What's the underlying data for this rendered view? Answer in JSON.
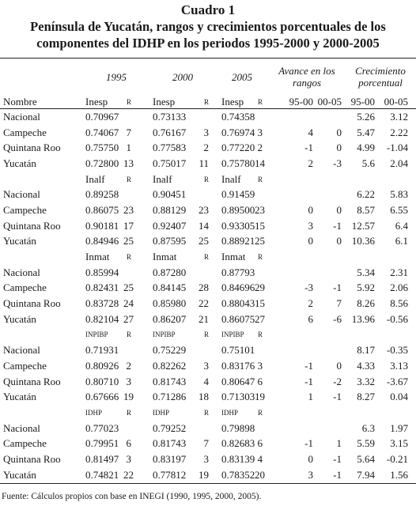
{
  "title": "Cuadro 1",
  "subtitle": [
    "Península de Yucatán, rangos y crecimientos porcentuales de los",
    "componentes del IDHP en los periodos 1995-2000 y 2000-2005"
  ],
  "table": {
    "group_headers": [
      "1995",
      "2000",
      "2005",
      "Avance en los rangos",
      "Crecimiento porcentual"
    ],
    "column_headers": [
      "Nombre",
      "Inesp",
      "R",
      "Inesp",
      "R",
      "Inesp",
      "R",
      "95-00",
      "00-05",
      "95-00",
      "00-05"
    ],
    "blocks": [
      {
        "rows": [
          [
            "Nacional",
            "0.70967",
            null,
            "0.73133",
            null,
            "0.74358",
            null,
            null,
            null,
            "5.26",
            "3.12"
          ],
          [
            "Campeche",
            "0.74067",
            "7",
            "0.76167",
            "3",
            "0.76974",
            "3",
            "4",
            "0",
            "5.47",
            "2.22"
          ],
          [
            "Quintana Roo",
            "0.75750",
            "1",
            "0.77583",
            "2",
            "0.77220",
            "2",
            "-1",
            "0",
            "4.99",
            "-1.04"
          ],
          [
            "Yucatán",
            "0.72800",
            "13",
            "0.75017",
            "11",
            "0.75780",
            "14",
            "2",
            "-3",
            "5.6",
            "2.04"
          ]
        ]
      },
      {
        "labels": [
          "Inalf",
          "R",
          "Inalf",
          "R",
          "Inalf",
          "R"
        ],
        "rows": [
          [
            "Nacional",
            "0.89258",
            null,
            "0.90451",
            null,
            "0.91459",
            null,
            null,
            null,
            "6.22",
            "5.83"
          ],
          [
            "Campeche",
            "0.86075",
            "23",
            "0.88129",
            "23",
            "0.89500",
            "23",
            "0",
            "0",
            "8.57",
            "6.55"
          ],
          [
            "Quintana Roo",
            "0.90181",
            "17",
            "0.92407",
            "14",
            "0.93305",
            "15",
            "3",
            "-1",
            "12.57",
            "6.4"
          ],
          [
            "Yucatán",
            "0.84946",
            "25",
            "0.87595",
            "25",
            "0.88921",
            "25",
            "0",
            "0",
            "10.36",
            "6.1"
          ]
        ]
      },
      {
        "labels": [
          "Inmat",
          "R",
          "Inmat",
          "R",
          "Inmat",
          "R"
        ],
        "rows": [
          [
            "Nacional",
            "0.85994",
            null,
            "0.87280",
            null,
            "0.87793",
            null,
            null,
            null,
            "5.34",
            "2.31"
          ],
          [
            "Campeche",
            "0.82431",
            "25",
            "0.84145",
            "28",
            "0.84696",
            "29",
            "-3",
            "-1",
            "5.92",
            "2.06"
          ],
          [
            "Quintana Roo",
            "0.83728",
            "24",
            "0.85980",
            "22",
            "0.88043",
            "15",
            "2",
            "7",
            "8.26",
            "8.56"
          ],
          [
            "Yucatán",
            "0.82104",
            "27",
            "0.86207",
            "21",
            "0.86075",
            "27",
            "6",
            "-6",
            "13.96",
            "-0.56"
          ]
        ]
      },
      {
        "labels": [
          "INPIBP",
          "R",
          "INPIBP",
          "R",
          "INPIBP",
          "R"
        ],
        "rows": [
          [
            "Nacional",
            "0.71931",
            null,
            "0.75229",
            null,
            "0.75101",
            null,
            null,
            null,
            "8.17",
            "-0.35"
          ],
          [
            "Campeche",
            "0.80926",
            "2",
            "0.82262",
            "3",
            "0.83176",
            "3",
            "-1",
            "0",
            "4.33",
            "3.13"
          ],
          [
            "Quintana Roo",
            "0.80710",
            "3",
            "0.81743",
            "4",
            "0.80647",
            "6",
            "-1",
            "-2",
            "3.32",
            "-3.67"
          ],
          [
            "Yucatán",
            "0.67666",
            "19",
            "0.71286",
            "18",
            "0.71303",
            "19",
            "1",
            "-1",
            "8.27",
            "0.04"
          ]
        ]
      },
      {
        "labels": [
          "IDHP",
          "R",
          "IDHP",
          "R",
          "IDHP",
          "R"
        ],
        "rows": [
          [
            "Nacional",
            "0.77023",
            null,
            "0.79252",
            null,
            "0.79898",
            null,
            null,
            null,
            "6.3",
            "1.97"
          ],
          [
            "Campeche",
            "0.79951",
            "6",
            "0.81743",
            "7",
            "0.82683",
            "6",
            "-1",
            "1",
            "5.59",
            "3.15"
          ],
          [
            "Quintana Roo",
            "0.81497",
            "3",
            "0.83197",
            "3",
            "0.83139",
            "4",
            "0",
            "-1",
            "5.64",
            "-0.21"
          ],
          [
            "Yucatán",
            "0.74821",
            "22",
            "0.77812",
            "19",
            "0.78352",
            "20",
            "3",
            "-1",
            "7.94",
            "1.56"
          ]
        ]
      }
    ]
  },
  "footnote": "Fuente: Cálculos propios con base en INEGI (1990, 1995, 2000, 2005)."
}
